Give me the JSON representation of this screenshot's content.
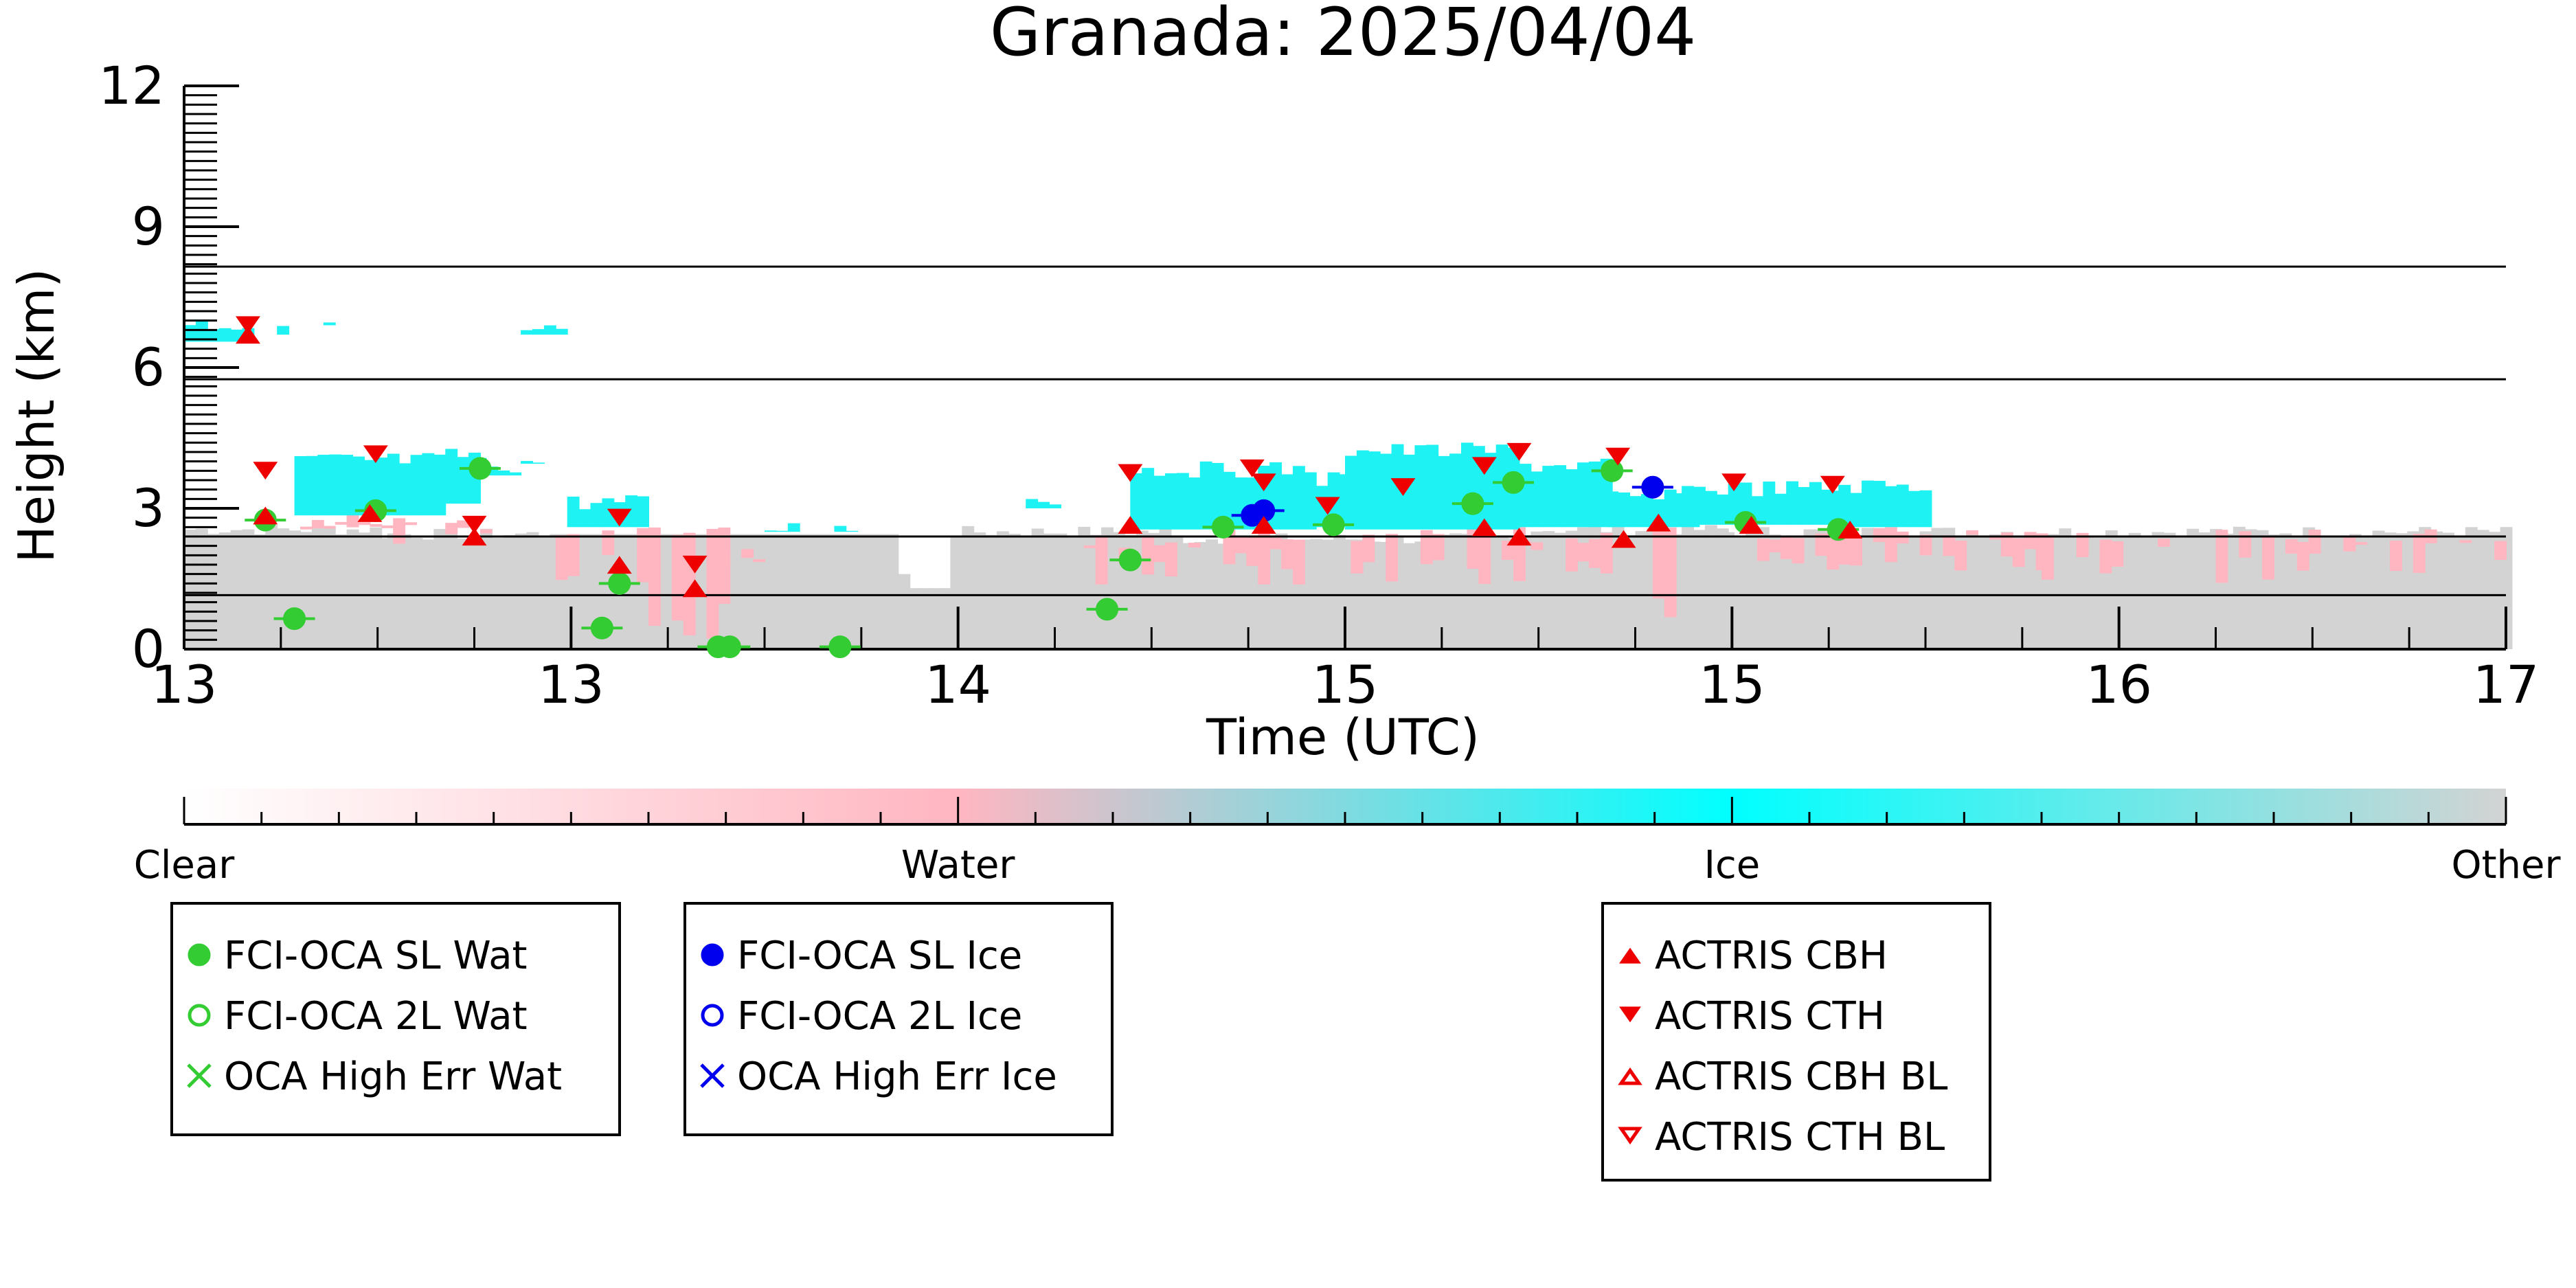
{
  "chart_data": {
    "type": "scatter",
    "title": "Granada: 2025/04/04",
    "xlabel": "Time (UTC)",
    "ylabel": "Height (km)",
    "xlim": [
      13.0,
      17.0
    ],
    "ylim": [
      0,
      12
    ],
    "x_tick_labels": [
      "13",
      "13",
      "14",
      "15",
      "15",
      "16",
      "17"
    ],
    "y_ticks": [
      0,
      3,
      6,
      9,
      12
    ],
    "reference_lines_km": [
      8.15,
      5.75,
      2.4,
      1.15
    ],
    "colorbar": {
      "labels": [
        "Clear",
        "Water",
        "Ice",
        "Other"
      ],
      "colors": [
        "#ffffff",
        "#ffb6c1",
        "#00ffff",
        "#d3d3d3"
      ]
    },
    "colors": {
      "water": "#ffb6c1",
      "ice": "#1ef2f2",
      "other": "#d3d3d3",
      "fci_wat": "#33cc33",
      "fci_ice": "#0000ee",
      "actris": "#ee0000"
    },
    "legends": [
      {
        "items": [
          {
            "label": "FCI-OCA SL Wat",
            "marker": "filled-circle",
            "color": "#33cc33"
          },
          {
            "label": "FCI-OCA 2L Wat",
            "marker": "open-circle",
            "color": "#33cc33"
          },
          {
            "label": "OCA High Err Wat",
            "marker": "x",
            "color": "#33cc33"
          }
        ]
      },
      {
        "items": [
          {
            "label": "FCI-OCA SL Ice",
            "marker": "filled-circle",
            "color": "#0000ee"
          },
          {
            "label": "FCI-OCA 2L Ice",
            "marker": "open-circle",
            "color": "#0000ee"
          },
          {
            "label": "OCA High Err Ice",
            "marker": "x",
            "color": "#0000ee"
          }
        ]
      },
      {
        "items": [
          {
            "label": "ACTRIS CBH",
            "marker": "triangle-up",
            "color": "#ee0000"
          },
          {
            "label": "ACTRIS CTH",
            "marker": "triangle-down",
            "color": "#ee0000"
          },
          {
            "label": "ACTRIS CBH BL",
            "marker": "open-triangle-up",
            "color": "#ee0000"
          },
          {
            "label": "ACTRIS CTH BL",
            "marker": "open-triangle-down",
            "color": "#ee0000"
          }
        ]
      }
    ],
    "series": [
      {
        "name": "FCI-OCA SL Wat",
        "points": [
          [
            13.14,
            2.75
          ],
          [
            13.19,
            0.65
          ],
          [
            13.33,
            2.95
          ],
          [
            13.51,
            3.85
          ],
          [
            13.72,
            0.45
          ],
          [
            13.75,
            1.4
          ],
          [
            13.92,
            0.05
          ],
          [
            13.94,
            0.05
          ],
          [
            14.13,
            0.05
          ],
          [
            14.59,
            0.85
          ],
          [
            14.63,
            1.9
          ],
          [
            14.79,
            2.6
          ],
          [
            14.98,
            2.65
          ],
          [
            15.22,
            3.1
          ],
          [
            15.29,
            3.55
          ],
          [
            15.46,
            3.8
          ],
          [
            15.69,
            2.7
          ],
          [
            15.85,
            2.55
          ]
        ]
      },
      {
        "name": "FCI-OCA SL Ice",
        "points": [
          [
            14.84,
            2.85
          ],
          [
            14.86,
            2.95
          ],
          [
            15.53,
            3.45
          ]
        ]
      },
      {
        "name": "ACTRIS CBH",
        "points": [
          [
            13.11,
            6.65
          ],
          [
            13.14,
            2.8
          ],
          [
            13.32,
            2.85
          ],
          [
            13.5,
            2.35
          ],
          [
            13.75,
            1.75
          ],
          [
            13.88,
            1.25
          ],
          [
            14.63,
            2.6
          ],
          [
            14.86,
            2.6
          ],
          [
            15.24,
            2.55
          ],
          [
            15.3,
            2.35
          ],
          [
            15.48,
            2.3
          ],
          [
            15.54,
            2.65
          ],
          [
            15.7,
            2.6
          ],
          [
            15.87,
            2.5
          ]
        ]
      },
      {
        "name": "ACTRIS CTH",
        "points": [
          [
            13.11,
            6.95
          ],
          [
            13.14,
            3.85
          ],
          [
            13.33,
            4.2
          ],
          [
            13.5,
            2.7
          ],
          [
            13.75,
            2.85
          ],
          [
            13.88,
            1.85
          ],
          [
            14.63,
            3.8
          ],
          [
            14.84,
            3.9
          ],
          [
            14.86,
            3.6
          ],
          [
            14.97,
            3.1
          ],
          [
            15.1,
            3.5
          ],
          [
            15.24,
            3.95
          ],
          [
            15.3,
            4.25
          ],
          [
            15.47,
            4.15
          ],
          [
            15.67,
            3.6
          ],
          [
            15.84,
            3.55
          ]
        ]
      }
    ]
  }
}
